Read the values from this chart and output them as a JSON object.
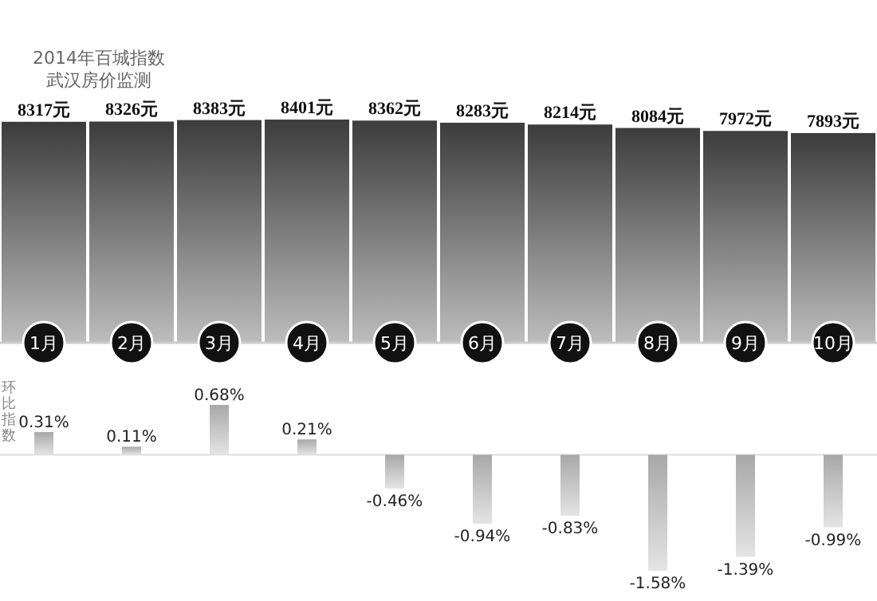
{
  "chart_data": [
    {
      "type": "bar",
      "title": "2014年百城指数",
      "subtitle": "武汉房价监测",
      "categories": [
        "1月",
        "2月",
        "3月",
        "4月",
        "5月",
        "6月",
        "7月",
        "8月",
        "9月",
        "10月"
      ],
      "values": [
        8317,
        8326,
        8383,
        8401,
        8362,
        8283,
        8214,
        8084,
        7972,
        7893
      ],
      "value_labels": [
        "8317元",
        "8326元",
        "8383元",
        "8401元",
        "8362元",
        "8283元",
        "8214元",
        "8084元",
        "7972元",
        "7893元"
      ],
      "color": "#3c3c3c"
    },
    {
      "type": "bar",
      "ylabel": "环比指数",
      "categories": [
        null,
        null,
        null,
        null,
        null,
        null,
        null,
        null,
        null,
        null
      ],
      "values": [
        0.31,
        0.11,
        0.68,
        0.21,
        -0.46,
        -0.94,
        -0.83,
        -1.58,
        -1.39,
        -0.99
      ],
      "value_labels": [
        "0.31%",
        "0.11%",
        "0.68%",
        "0.21%",
        "-0.46%",
        "-0.94%",
        "-0.83%",
        "-1.58%",
        "-1.39%",
        "-0.99%"
      ],
      "color": "#a8a8a8"
    }
  ]
}
